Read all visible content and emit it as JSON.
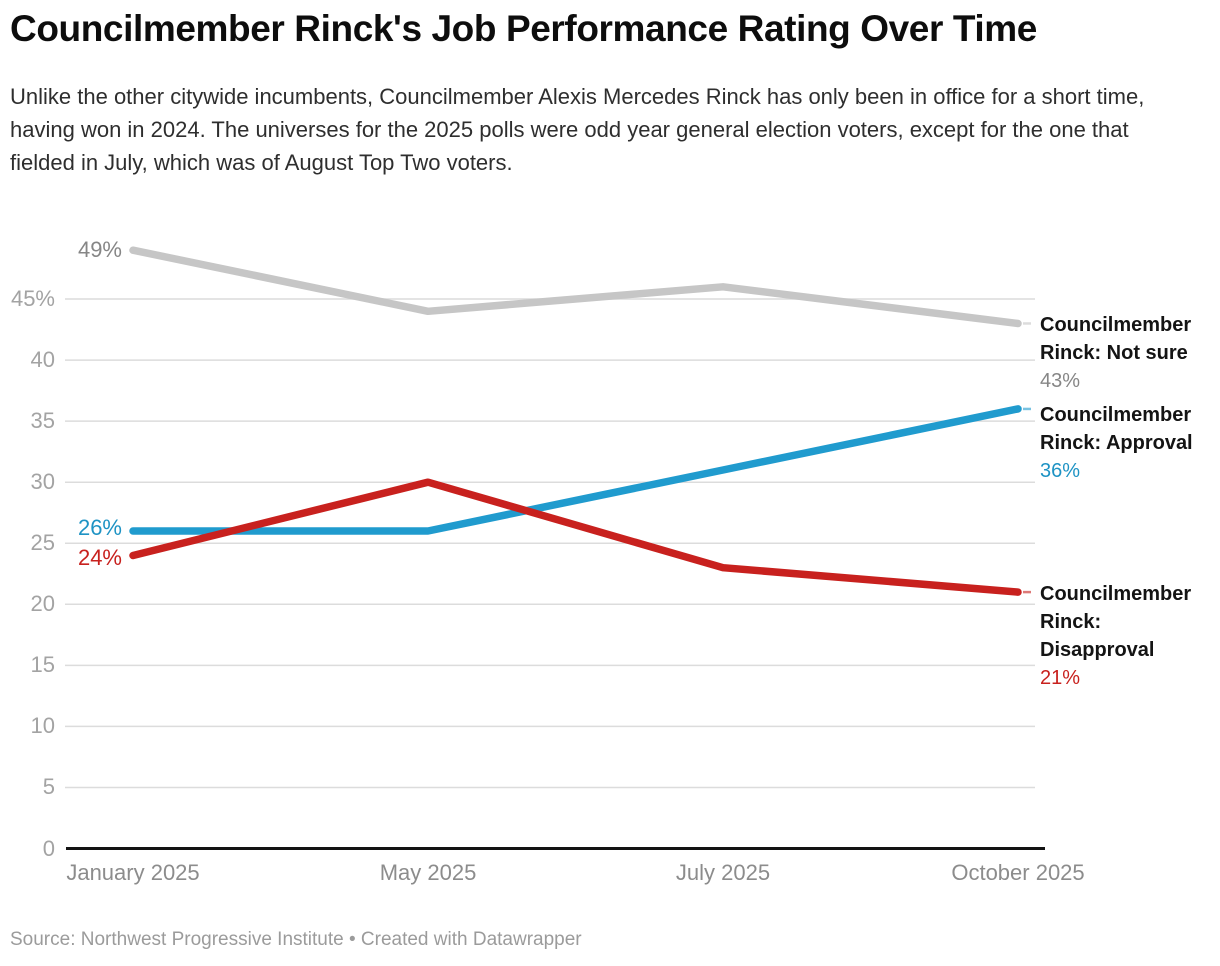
{
  "header": {
    "title": "Councilmember Rinck's Job Performance Rating Over Time",
    "description": "Unlike the other citywide incumbents, Councilmember Alexis Mercedes Rinck has only been in office for a short time, having won in 2024. The universes for the 2025 polls were odd year general election voters, except for the one that fielded in July, which was of August Top Two voters."
  },
  "footer": {
    "source": "Source: Northwest Progressive Institute • Created with Datawrapper"
  },
  "chart_data": {
    "type": "line",
    "title": "Councilmember Rinck's Job Performance Rating Over Time",
    "x": [
      "January 2025",
      "May 2025",
      "July 2025",
      "October 2025"
    ],
    "series": [
      {
        "name": "Councilmember Rinck: Not sure",
        "values": [
          49,
          44,
          46,
          43
        ],
        "line_color": "#c6c6c6",
        "label_color": "#868686",
        "start_label": "49%",
        "end_label": "43%"
      },
      {
        "name": "Councilmember Rinck: Approval",
        "values": [
          26,
          26,
          31,
          36
        ],
        "line_color": "#209bce",
        "label_color": "#1e93c4",
        "start_label": "26%",
        "end_label": "36%"
      },
      {
        "name": "Councilmember Rinck: Disapproval",
        "values": [
          24,
          30,
          23,
          21
        ],
        "line_color": "#c8211e",
        "label_color": "#c8211e",
        "start_label": "24%",
        "end_label": "21%"
      }
    ],
    "y_axis": {
      "ticks": [
        {
          "value": 45,
          "label": "45%"
        },
        {
          "value": 40,
          "label": "40"
        },
        {
          "value": 35,
          "label": "35"
        },
        {
          "value": 30,
          "label": "30"
        },
        {
          "value": 25,
          "label": "25"
        },
        {
          "value": 20,
          "label": "20"
        },
        {
          "value": 15,
          "label": "15"
        },
        {
          "value": 10,
          "label": "10"
        },
        {
          "value": 5,
          "label": "5"
        },
        {
          "value": 0,
          "label": "0"
        }
      ],
      "ylim": [
        0,
        51
      ]
    },
    "xlabel": "",
    "ylabel": "",
    "grid": "horizontal",
    "legend_position": "right",
    "colors": {
      "grid": "#dcdcdc",
      "axis_line": "#131313",
      "y_tick_text": "#a3a3a3",
      "x_tick_text": "#8c8c8c",
      "legend_name_text": "#141414",
      "title_text": "#0d0d0d",
      "body_text": "#2e2e2e",
      "source_text": "#9b9b9b"
    }
  }
}
